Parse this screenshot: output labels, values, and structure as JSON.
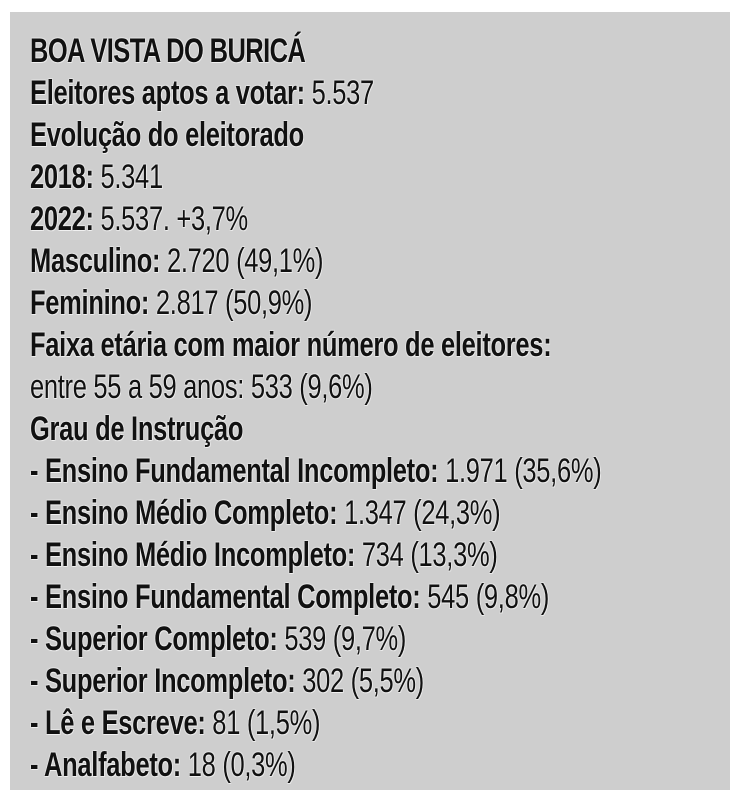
{
  "page": {
    "background_color": "#ffffff",
    "panel_color": "#cecece",
    "text_color": "#111111"
  },
  "infobox": {
    "title": "BOA VISTA DO BURICÁ",
    "lines": [
      {
        "bold": "BOA VISTA DO BURICÁ",
        "regular": ""
      },
      {
        "bold": "Eleitores aptos a votar:",
        "regular": " 5.537"
      },
      {
        "bold": "Evolução do eleitorado",
        "regular": ""
      },
      {
        "bold": "2018:",
        "regular": " 5.341"
      },
      {
        "bold": "2022:",
        "regular": " 5.537. +3,7%"
      },
      {
        "bold": "Masculino:",
        "regular": " 2.720 (49,1%)"
      },
      {
        "bold": "Feminino:",
        "regular": " 2.817 (50,9%)"
      },
      {
        "bold": "Faixa etária com maior número de eleitores:",
        "regular": ""
      },
      {
        "bold": "",
        "regular": "entre 55 a 59 anos: 533 (9,6%)"
      },
      {
        "bold": "Grau de Instrução",
        "regular": ""
      },
      {
        "bold": "- Ensino Fundamental Incompleto:",
        "regular": " 1.971 (35,6%)"
      },
      {
        "bold": "- Ensino Médio Completo:",
        "regular": " 1.347 (24,3%)"
      },
      {
        "bold": "- Ensino Médio Incompleto:",
        "regular": " 734 (13,3%)"
      },
      {
        "bold": "- Ensino Fundamental Completo:",
        "regular": " 545 (9,8%)"
      },
      {
        "bold": "- Superior Completo:",
        "regular": " 539 (9,7%)"
      },
      {
        "bold": "- Superior Incompleto:",
        "regular": " 302 (5,5%)"
      },
      {
        "bold": "- Lê e Escreve:",
        "regular": " 81 (1,5%)"
      },
      {
        "bold": "- Analfabeto:",
        "regular": " 18 (0,3%)"
      }
    ]
  }
}
